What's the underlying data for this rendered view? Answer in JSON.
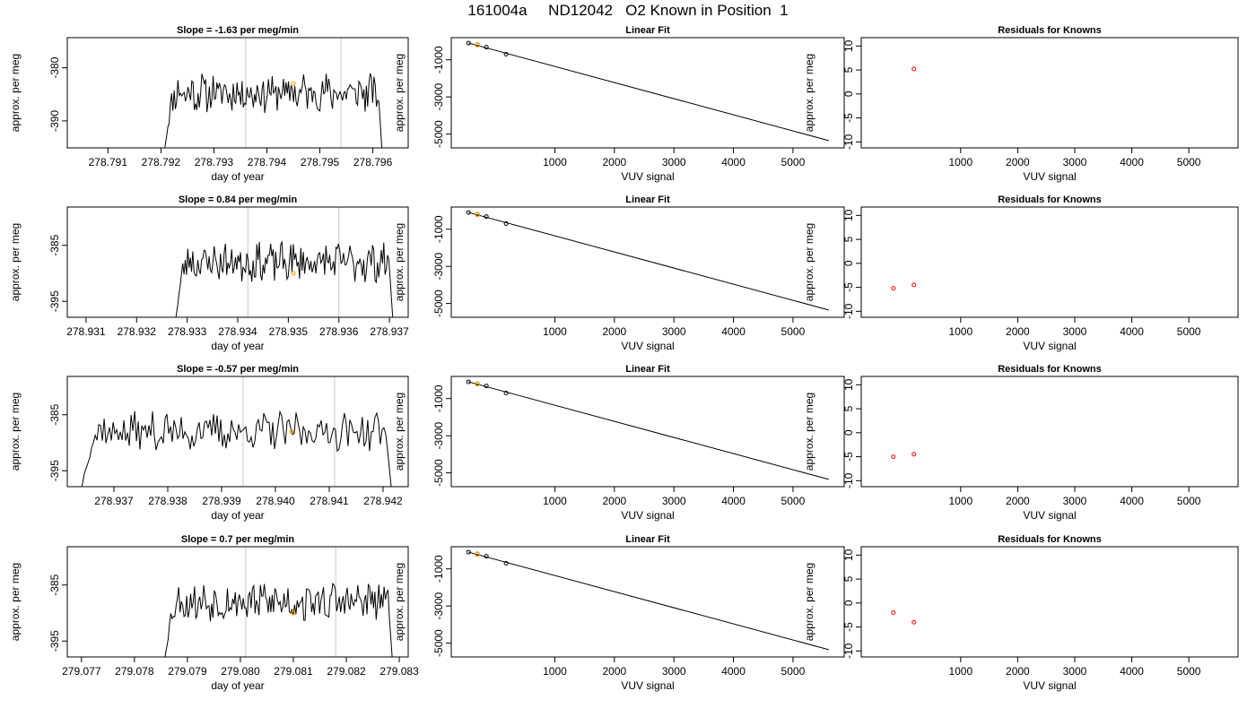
{
  "main_title": "161004a     ND12042   O2 Known in Position  1",
  "colors": {
    "line": "#000000",
    "guide": "#c8c8c8",
    "marker": "#ffa500",
    "residual": "#ff0000"
  },
  "chart_data": [
    {
      "type": "line",
      "title": "Slope =  -1.63  per meg/min",
      "xlabel": "day of year",
      "ylabel": "approx. per meg",
      "xlim": [
        278.7903,
        278.7966
      ],
      "ylim": [
        -394.4,
        -375.0
      ],
      "xticks": [
        "278.791",
        "278.792",
        "278.793",
        "278.794",
        "278.795",
        "278.796"
      ],
      "yticks": [
        "-390",
        "-380"
      ],
      "guides_x": [
        278.7936,
        278.7954
      ],
      "start_x": 278.792,
      "end_x": 278.7962,
      "highlight": {
        "x": 278.7945,
        "y": -383
      },
      "seed": 11
    },
    {
      "type": "scatter",
      "title": "Linear Fit",
      "xlabel": "VUV signal",
      "ylabel": "approx. per meg",
      "xlim": [
        -680,
        5800
      ],
      "ylim": [
        -5550,
        0
      ],
      "xticks": [
        "1000",
        "2000",
        "3000",
        "4000",
        "5000"
      ],
      "yticks": [
        "-5000",
        "-3000",
        "-1000"
      ],
      "fit_line": [
        [
          -450,
          -100
        ],
        [
          5600,
          -5350
        ]
      ],
      "points": [
        [
          -450,
          -100
        ],
        [
          -300,
          -180
        ],
        [
          -150,
          -320
        ],
        [
          180,
          -700
        ]
      ],
      "orange_points": [
        [
          -300,
          -200
        ]
      ]
    },
    {
      "type": "scatter",
      "title": "Residuals for Knowns",
      "xlabel": "VUV signal",
      "ylabel": "approx. per meg",
      "xlim": [
        -680,
        5800
      ],
      "ylim": [
        -10.5,
        11
      ],
      "xticks": [
        "1000",
        "2000",
        "3000",
        "4000",
        "5000"
      ],
      "yticks": [
        "-10",
        "-5",
        "0",
        "5",
        "10"
      ],
      "points": [
        [
          180,
          5.2
        ]
      ]
    },
    {
      "type": "line",
      "title": "Slope =  0.84  per meg/min",
      "xlabel": "day of year",
      "ylabel": "approx. per meg",
      "xlim": [
        278.9307,
        278.9373
      ],
      "ylim": [
        -397.2,
        -378.8
      ],
      "xticks": [
        "278.931",
        "278.932",
        "278.933",
        "278.934",
        "278.935",
        "278.936",
        "278.937"
      ],
      "yticks": [
        "-395",
        "-385"
      ],
      "guides_x": [
        278.9342,
        278.936
      ],
      "start_x": 278.9327,
      "end_x": 278.9371,
      "highlight": {
        "x": 278.9351,
        "y": -390
      },
      "seed": 23
    },
    {
      "type": "scatter",
      "title": "Linear Fit",
      "xlabel": "VUV signal",
      "ylabel": "approx. per meg",
      "xlim": [
        -680,
        5800
      ],
      "ylim": [
        -5550,
        0
      ],
      "xticks": [
        "1000",
        "2000",
        "3000",
        "4000",
        "5000"
      ],
      "yticks": [
        "-5000",
        "-3000",
        "-1000"
      ],
      "fit_line": [
        [
          -450,
          -100
        ],
        [
          5600,
          -5350
        ]
      ],
      "points": [
        [
          -450,
          -100
        ],
        [
          -300,
          -200
        ],
        [
          -150,
          -320
        ],
        [
          180,
          -700
        ]
      ],
      "orange_points": [
        [
          -300,
          -220
        ]
      ]
    },
    {
      "type": "scatter",
      "title": "Residuals for Knowns",
      "xlabel": "VUV signal",
      "ylabel": "approx. per meg",
      "xlim": [
        -680,
        5800
      ],
      "ylim": [
        -10.5,
        11
      ],
      "xticks": [
        "1000",
        "2000",
        "3000",
        "4000",
        "5000"
      ],
      "yticks": [
        "-10",
        "-5",
        "0",
        "5",
        "10"
      ],
      "points": [
        [
          -180,
          -5.2
        ],
        [
          180,
          -4.5
        ]
      ]
    },
    {
      "type": "line",
      "title": "Slope =  -0.57  per meg/min",
      "xlabel": "day of year",
      "ylabel": "approx. per meg",
      "xlim": [
        278.9362,
        278.9424
      ],
      "ylim": [
        -397.2,
        -378.8
      ],
      "xticks": [
        "278.937",
        "278.938",
        "278.939",
        "278.940",
        "278.941",
        "278.942"
      ],
      "yticks": [
        "-395",
        "-385"
      ],
      "guides_x": [
        278.9394,
        278.9411
      ],
      "start_x": 278.9363,
      "end_x": 278.9422,
      "highlight": {
        "x": 278.9403,
        "y": -388
      },
      "seed": 37
    },
    {
      "type": "scatter",
      "title": "Linear Fit",
      "xlabel": "VUV signal",
      "ylabel": "approx. per meg",
      "xlim": [
        -680,
        5800
      ],
      "ylim": [
        -5550,
        0
      ],
      "xticks": [
        "1000",
        "2000",
        "3000",
        "4000",
        "5000"
      ],
      "yticks": [
        "-5000",
        "-3000",
        "-1000"
      ],
      "fit_line": [
        [
          -450,
          -100
        ],
        [
          5600,
          -5350
        ]
      ],
      "points": [
        [
          -450,
          -100
        ],
        [
          -300,
          -200
        ],
        [
          -150,
          -320
        ],
        [
          180,
          -700
        ]
      ],
      "orange_points": [
        [
          -300,
          -220
        ]
      ]
    },
    {
      "type": "scatter",
      "title": "Residuals for Knowns",
      "xlabel": "VUV signal",
      "ylabel": "approx. per meg",
      "xlim": [
        -680,
        5800
      ],
      "ylim": [
        -10.5,
        11
      ],
      "xticks": [
        "1000",
        "2000",
        "3000",
        "4000",
        "5000"
      ],
      "yticks": [
        "-10",
        "-5",
        "0",
        "5",
        "10"
      ],
      "points": [
        [
          -180,
          -5.0
        ],
        [
          180,
          -4.5
        ]
      ]
    },
    {
      "type": "line",
      "title": "Slope =  0.7  per meg/min",
      "xlabel": "day of year",
      "ylabel": "approx. per meg",
      "xlim": [
        279.0768,
        279.0831
      ],
      "ylim": [
        -397.2,
        -378.8
      ],
      "xticks": [
        "279.077",
        "279.078",
        "279.079",
        "279.080",
        "279.081",
        "279.082",
        "279.083"
      ],
      "yticks": [
        "-395",
        "-385"
      ],
      "guides_x": [
        279.0801,
        279.0818
      ],
      "start_x": 279.0785,
      "end_x": 279.0829,
      "highlight": {
        "x": 279.081,
        "y": -390
      },
      "seed": 53
    },
    {
      "type": "scatter",
      "title": "Linear Fit",
      "xlabel": "VUV signal",
      "ylabel": "approx. per meg",
      "xlim": [
        -680,
        5800
      ],
      "ylim": [
        -5550,
        0
      ],
      "xticks": [
        "1000",
        "2000",
        "3000",
        "4000",
        "5000"
      ],
      "yticks": [
        "-5000",
        "-3000",
        "-1000"
      ],
      "fit_line": [
        [
          -450,
          -100
        ],
        [
          5600,
          -5350
        ]
      ],
      "points": [
        [
          -450,
          -100
        ],
        [
          -300,
          -200
        ],
        [
          -150,
          -320
        ],
        [
          180,
          -700
        ]
      ],
      "orange_points": [
        [
          -300,
          -220
        ]
      ]
    },
    {
      "type": "scatter",
      "title": "Residuals for Knowns",
      "xlabel": "VUV signal",
      "ylabel": "approx. per meg",
      "xlim": [
        -680,
        5800
      ],
      "ylim": [
        -10.5,
        11
      ],
      "xticks": [
        "1000",
        "2000",
        "3000",
        "4000",
        "5000"
      ],
      "yticks": [
        "-10",
        "-5",
        "0",
        "5",
        "10"
      ],
      "points": [
        [
          -180,
          -2.0
        ],
        [
          180,
          -4.0
        ]
      ]
    }
  ]
}
